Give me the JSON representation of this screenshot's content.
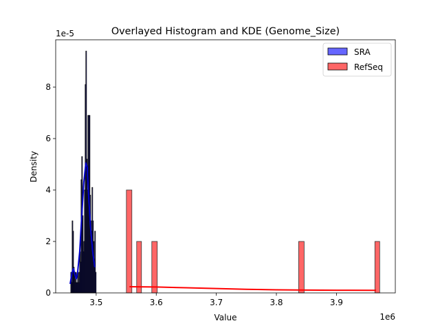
{
  "chart_data": {
    "type": "bar",
    "title": "Overlayed Histogram and KDE (Genome_Size)",
    "xlabel": "Value",
    "ylabel": "Density",
    "x_offset_label": "1e6",
    "y_offset_label": "1e-5",
    "xlim": [
      3.4326,
      3.998
    ],
    "ylim": [
      0,
      9.84
    ],
    "xticks": [
      3.5,
      3.6,
      3.7,
      3.8,
      3.9
    ],
    "xtick_labels": [
      "3.5",
      "3.6",
      "3.7",
      "3.8",
      "3.9"
    ],
    "yticks": [
      0,
      2,
      4,
      6,
      8
    ],
    "ytick_labels": [
      "0",
      "2",
      "4",
      "6",
      "8"
    ],
    "grid": false,
    "legend_position": "top-right",
    "series": [
      {
        "name": "SRA",
        "color": "#0000ff",
        "kde_color": "#0000cc",
        "bin_start": 3.4577,
        "bin_width": 0.00114,
        "values": [
          0.8,
          0.4,
          2.8,
          2.4,
          1.0,
          0.8,
          0.4,
          0.8,
          0.4,
          0.4,
          0.8,
          0.4,
          0.8,
          1.6,
          1.2,
          4.4,
          5.3,
          3.0,
          1.6,
          2.0,
          4.0,
          8.1,
          9.4,
          5.2,
          4.0,
          6.9,
          6.9,
          6.9,
          3.8,
          2.8,
          2.4,
          4.1,
          2.8,
          2.0,
          1.2,
          2.4,
          0.8
        ],
        "kde": {
          "x": [
            3.4566,
            3.46,
            3.4623,
            3.4646,
            3.4669,
            3.4691,
            3.4726,
            3.476,
            3.4794,
            3.4829,
            3.4851,
            3.4874,
            3.4909,
            3.4943,
            3.4977
          ],
          "y": [
            0.35,
            0.8,
            0.95,
            0.7,
            0.55,
            0.8,
            1.6,
            3.0,
            4.3,
            5.05,
            4.9,
            3.8,
            2.5,
            1.6,
            1.0
          ]
        }
      },
      {
        "name": "RefSeq",
        "color": "#ff0000",
        "kde_color": "#ff0000",
        "bins": [
          {
            "start": 3.5503,
            "width": 0.0091,
            "value": 4
          },
          {
            "start": 3.5674,
            "width": 0.008,
            "value": 2
          },
          {
            "start": 3.5926,
            "width": 0.0091,
            "value": 2
          },
          {
            "start": 3.8371,
            "width": 0.0091,
            "value": 2
          },
          {
            "start": 3.964,
            "width": 0.008,
            "value": 2
          }
        ],
        "kde": {
          "x": [
            3.5554,
            3.6,
            3.65,
            3.7,
            3.75,
            3.8,
            3.85,
            3.9,
            3.966
          ],
          "y": [
            0.24,
            0.23,
            0.2,
            0.17,
            0.14,
            0.12,
            0.11,
            0.105,
            0.1
          ]
        }
      }
    ]
  }
}
